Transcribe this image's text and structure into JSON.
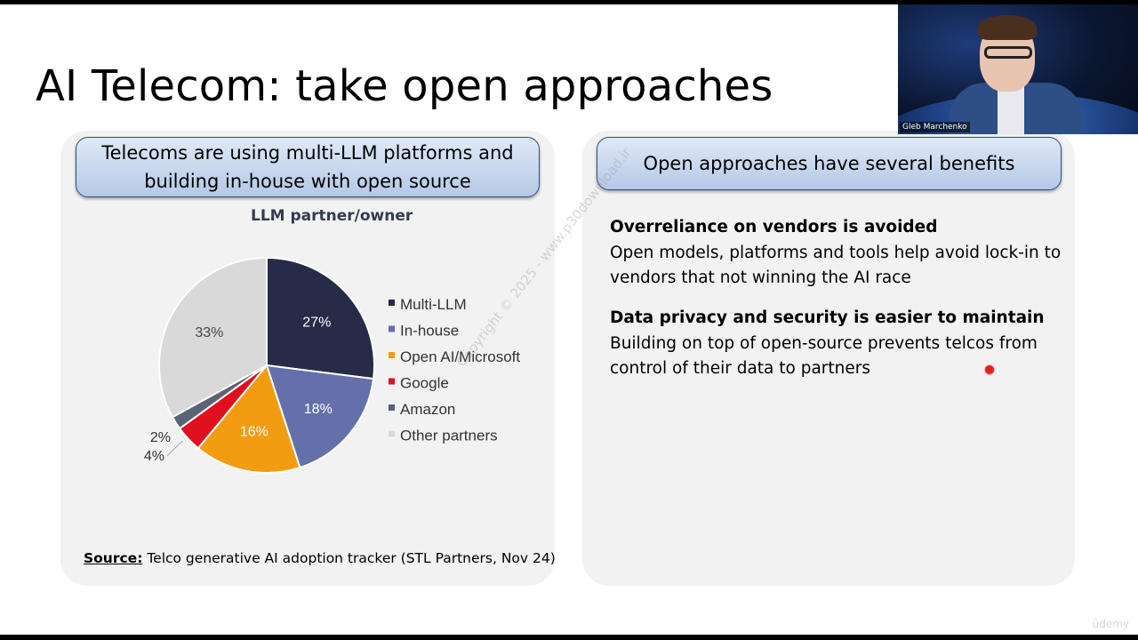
{
  "slide": {
    "title": "AI Telecom: take open approaches"
  },
  "left_panel": {
    "heading_line1": "Telecoms are using multi-LLM platforms and",
    "heading_line2": "building in-house with open source",
    "source_label": "Source:",
    "source_text": " Telco generative AI adoption tracker (STL Partners, Nov 24)"
  },
  "right_panel": {
    "heading": "Open approaches have several benefits",
    "benefits": [
      {
        "title": "Overreliance on vendors is avoided",
        "body": "Open models, platforms and tools help avoid lock-in to vendors that not winning the AI race"
      },
      {
        "title": "Data privacy and security is easier to maintain",
        "body": "Building on top of open-source prevents telcos from control of their data to partners"
      }
    ]
  },
  "webcam": {
    "name": "Gleb Marchenko"
  },
  "watermark": {
    "text": "Copyright © 2025 - www.p30download.ir"
  },
  "brand": {
    "text": "ûdemy"
  },
  "colors": {
    "multi_llm": "#262c47",
    "in_house": "#6470aa",
    "openai": "#f39c12",
    "google": "#e0101f",
    "amazon": "#5b6472",
    "other": "#d9d9d9",
    "panel_bg": "#f2f2f2"
  },
  "chart_data": {
    "type": "pie",
    "title": "LLM partner/owner",
    "categories": [
      "Multi-LLM",
      "In-house",
      "Open AI/Microsoft",
      "Google",
      "Amazon",
      "Other partners"
    ],
    "values": [
      27,
      18,
      16,
      4,
      2,
      33
    ],
    "value_labels": [
      "27%",
      "18%",
      "16%",
      "4%",
      "2%",
      "33%"
    ],
    "legend_position": "right"
  }
}
